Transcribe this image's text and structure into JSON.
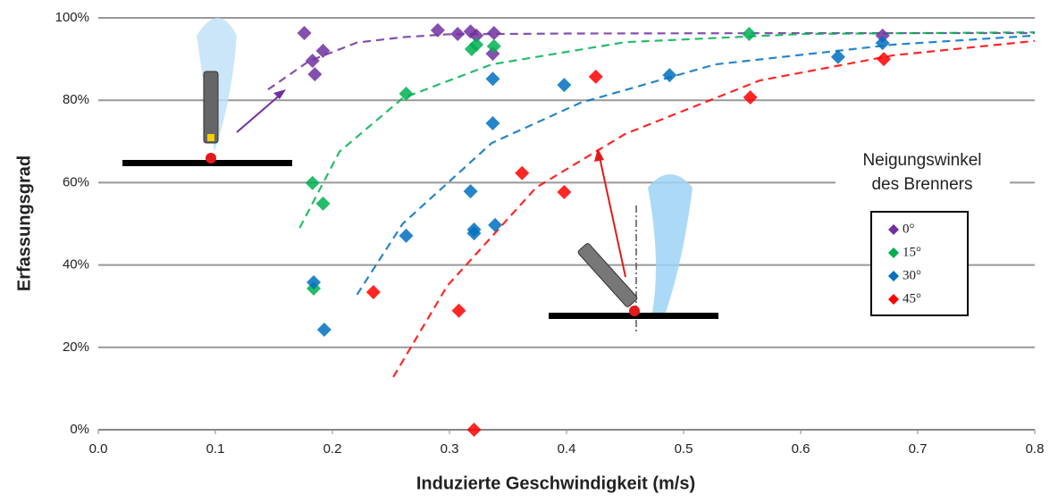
{
  "chart_data": {
    "type": "scatter",
    "y_label": "Erfassungsgrad",
    "x_label": "Induzierte Geschwindigkeit (m/s)",
    "legend_title": [
      "Neigungswinkel",
      "des Brenners"
    ],
    "xlim": [
      0,
      0.8
    ],
    "ylim": [
      0,
      100
    ],
    "xticks": [
      {
        "value": 0,
        "label": "0.0"
      },
      0.1,
      0.2,
      0.3,
      0.4,
      0.5,
      0.6,
      0.7,
      0.8
    ],
    "yticks": [
      {
        "value": 0,
        "label": "0%"
      },
      {
        "value": 20,
        "label": "20%"
      },
      {
        "value": 40,
        "label": "40%"
      },
      {
        "value": 60,
        "label": "60%"
      },
      {
        "value": 80,
        "label": "80%"
      },
      {
        "value": 100,
        "label": "100%"
      }
    ],
    "grid": true,
    "series": [
      {
        "name": "0°",
        "color": "#7030a0",
        "x": [
          0.176,
          0.183,
          0.185,
          0.192,
          0.29,
          0.307,
          0.318,
          0.323,
          0.337,
          0.338,
          0.67
        ],
        "values": [
          96.3,
          89.6,
          86.3,
          92.0,
          97.0,
          96.1,
          96.7,
          95.7,
          91.3,
          96.3,
          95.7
        ],
        "trend": {
          "x": [
            0.145,
            0.18,
            0.221,
            0.26,
            0.298,
            0.4,
            0.6,
            0.8
          ],
          "values": [
            82.6,
            89.5,
            94,
            95.3,
            96,
            96.2,
            96.3,
            96.3
          ]
        }
      },
      {
        "name": "15°",
        "color": "#00b050",
        "x": [
          0.319,
          0.323,
          0.338,
          0.263,
          0.183,
          0.192,
          0.184,
          0.556
        ],
        "values": [
          92.4,
          93.5,
          93.1,
          81.6,
          59.9,
          54.9,
          34.3,
          96.1
        ],
        "trend": {
          "x": [
            0.172,
            0.206,
            0.26,
            0.336,
            0.45,
            0.603,
            0.8
          ],
          "values": [
            49,
            67.5,
            80.5,
            88.7,
            94.1,
            96.1,
            96.5
          ]
        }
      },
      {
        "name": "30°",
        "color": "#0070c0",
        "x": [
          0.337,
          0.337,
          0.398,
          0.488,
          0.632,
          0.67,
          0.318,
          0.321,
          0.321,
          0.339,
          0.263,
          0.184,
          0.193
        ],
        "values": [
          85.2,
          74.4,
          83.7,
          86.1,
          90.5,
          93.9,
          57.9,
          48.6,
          47.7,
          49.7,
          47.1,
          35.8,
          24.3
        ],
        "trend": {
          "x": [
            0.221,
            0.26,
            0.336,
            0.412,
            0.527,
            0.679,
            0.8
          ],
          "values": [
            32.8,
            50,
            69.6,
            79.4,
            88.7,
            93.5,
            95.7
          ]
        }
      },
      {
        "name": "45°",
        "color": "#ff0000",
        "x": [
          0.425,
          0.557,
          0.671,
          0.362,
          0.398,
          0.235,
          0.308,
          0.321
        ],
        "values": [
          85.7,
          80.7,
          90.0,
          62.3,
          57.7,
          33.4,
          28.9,
          0
        ],
        "trend": {
          "x": [
            0.252,
            0.298,
            0.374,
            0.45,
            0.565,
            0.679,
            0.8
          ],
          "values": [
            12.8,
            34.9,
            58.8,
            71.8,
            84.8,
            90.9,
            94.4
          ]
        }
      }
    ]
  }
}
